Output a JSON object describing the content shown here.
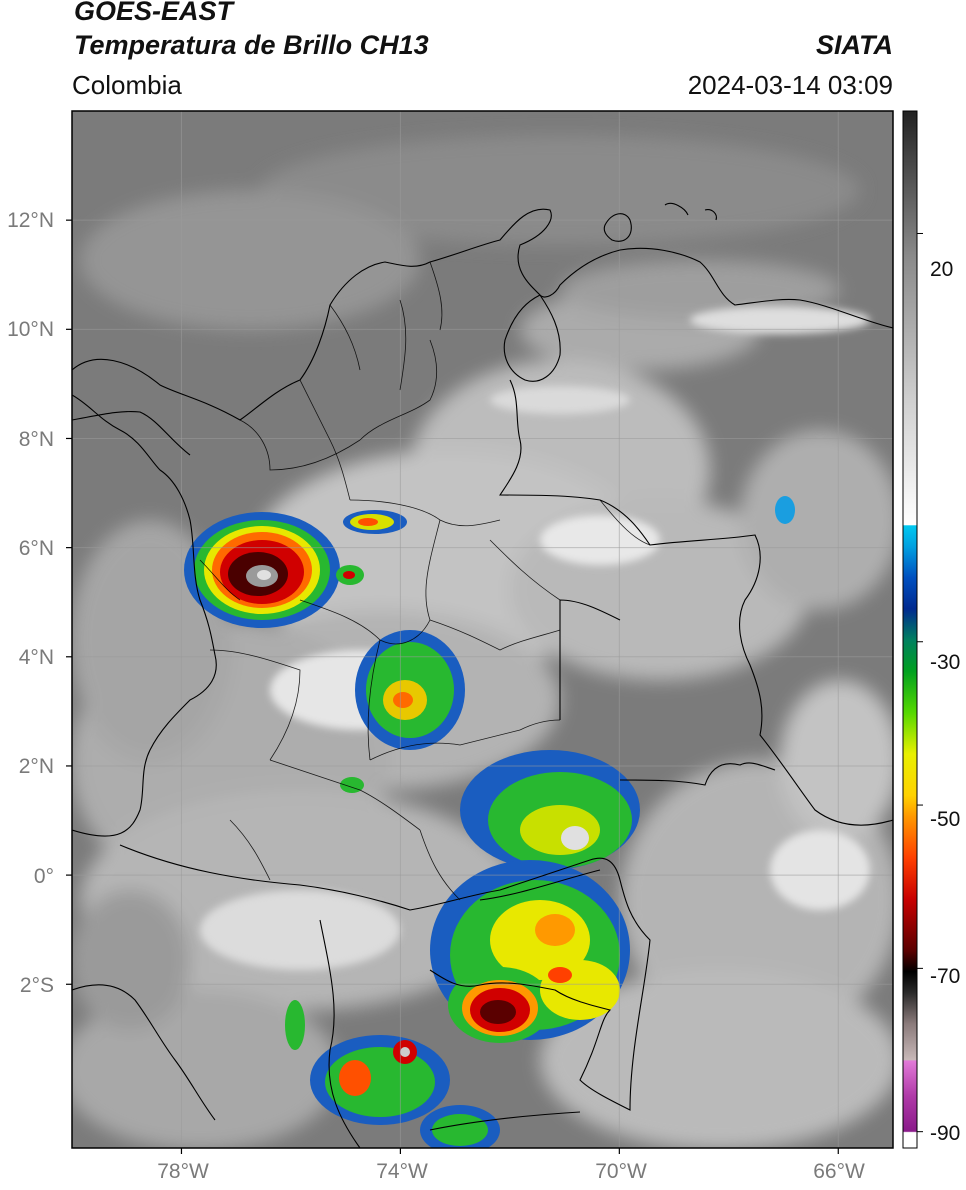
{
  "header": {
    "satellite": "GOES-EAST",
    "product": "Temperatura de Brillo CH13",
    "region": "Colombia",
    "agency": "SIATA",
    "timestamp": "2024-03-14 03:09"
  },
  "axes": {
    "lat_labels": [
      "12°N",
      "10°N",
      "8°N",
      "6°N",
      "4°N",
      "2°N",
      "0°",
      "2°S"
    ],
    "lon_labels": [
      "78°W",
      "74°W",
      "70°W",
      "66°W"
    ],
    "lat_values": [
      12,
      10,
      8,
      6,
      4,
      2,
      0,
      -2
    ],
    "lon_values": [
      -78,
      -74,
      -70,
      -66
    ],
    "lon_range": [
      -80,
      -65
    ],
    "lat_range": [
      -5,
      14
    ],
    "grid": true
  },
  "colorbar": {
    "tick_labels": [
      "20",
      "-30",
      "-50",
      "-70",
      "-90"
    ],
    "tick_values": [
      20,
      -30,
      -50,
      -70,
      -90
    ],
    "range": [
      -92,
      35
    ]
  },
  "colors": {
    "background": "#7b7b7b",
    "boundaries": "#000000"
  }
}
